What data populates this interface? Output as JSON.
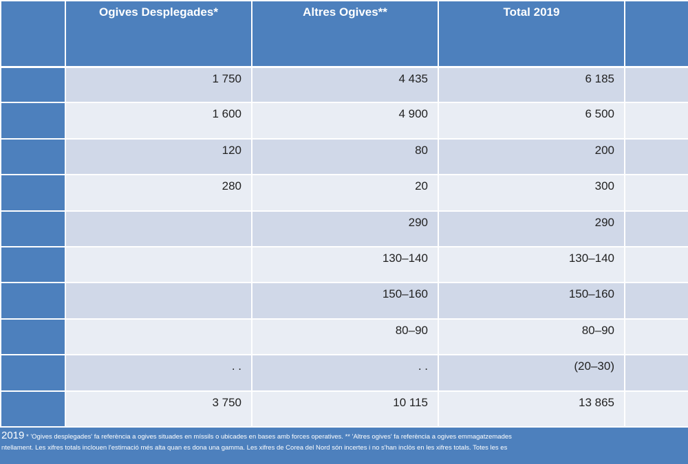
{
  "table": {
    "headers": [
      "",
      "Ogives Desplegades*",
      "Altres Ogives**",
      "Total 2019",
      ""
    ],
    "rows": [
      {
        "deployed": "1 750",
        "other": "4 435",
        "total": "6 185"
      },
      {
        "deployed": "1 600",
        "other": "4 900",
        "total": "6 500"
      },
      {
        "deployed": "120",
        "other": "80",
        "total": "200"
      },
      {
        "deployed": "280",
        "other": "20",
        "total": "300"
      },
      {
        "deployed": "",
        "other": "290",
        "total": "290"
      },
      {
        "deployed": "",
        "other": "130–140",
        "total": "130–140"
      },
      {
        "deployed": "",
        "other": "150–160",
        "total": "150–160"
      },
      {
        "deployed": "",
        "other": "80–90",
        "total": "80–90"
      },
      {
        "deployed": ". .",
        "other": ". .",
        "total": "(20–30)"
      },
      {
        "deployed": "3 750",
        "other": "10 115",
        "total": "13 865"
      }
    ]
  },
  "footnote": {
    "year": "2019",
    "line1": "* 'Ogives desplegades' fa referència a ogives situades en míssils o ubicades en bases amb forces operatives. ** 'Altres ogives' fa referència a ogives emmagatzemades",
    "line2": "ntellament. Les xifres totals inclouen l'estimació més alta quan es dona una gamma. Les xifres de Corea del Nord són incertes i no s'han inclòs en les xifres totals. Totes les es"
  }
}
